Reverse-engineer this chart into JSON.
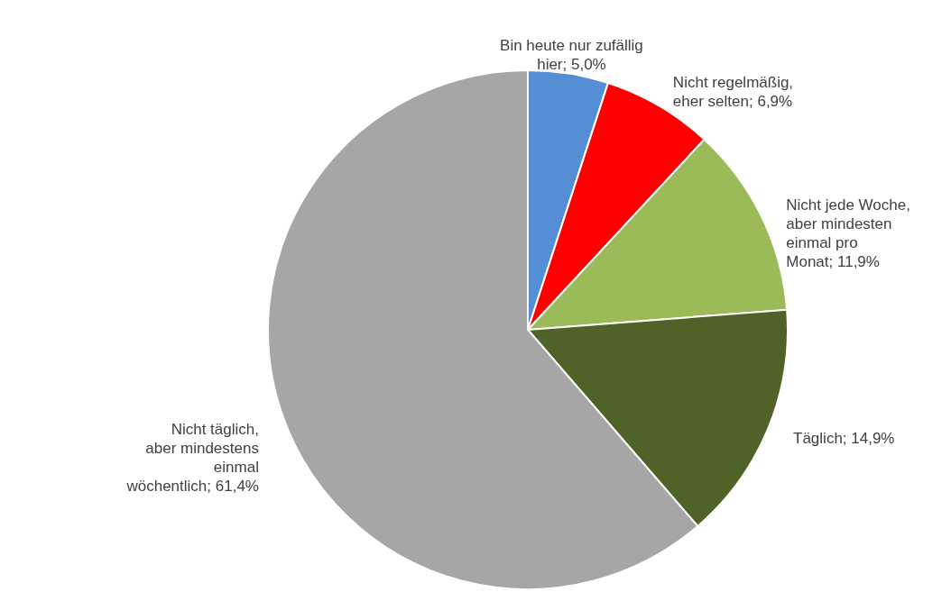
{
  "chart_data": {
    "type": "pie",
    "categories": [
      "Bin heute nur zufällig hier",
      "Nicht regelmäßig, eher selten",
      "Nicht jede Woche, aber mindesten einmal pro Monat",
      "Täglich",
      "Nicht täglich, aber mindestens einmal wöchentlich"
    ],
    "values": [
      5.0,
      6.9,
      11.9,
      14.9,
      61.4
    ],
    "value_labels": [
      "5,0%",
      "6,9%",
      "11,9%",
      "14,9%",
      "61,4%"
    ],
    "colors": [
      "#558ed5",
      "#ff0000",
      "#9bbb59",
      "#4f6228",
      "#a6a6a6"
    ]
  }
}
